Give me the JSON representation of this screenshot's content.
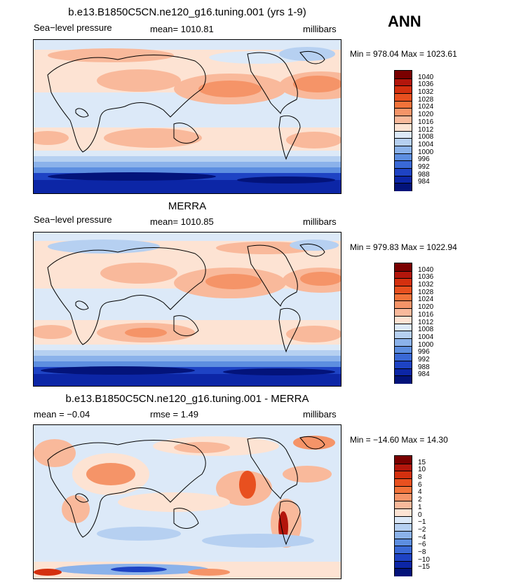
{
  "season": "ANN",
  "panels": [
    {
      "title": "b.e13.B1850C5CN.ne120_g16.tuning.001 (yrs 1-9)",
      "left_label": "Sea−level pressure",
      "mid_label": "mean=  1010.81",
      "right_label": "millibars",
      "minmax": "Min = 978.04  Max = 1023.61",
      "colorbar_labels": [
        "1040",
        "1036",
        "1032",
        "1028",
        "1024",
        "1020",
        "1016",
        "1012",
        "1008",
        "1004",
        "1000",
        "996",
        "992",
        "988",
        "984"
      ]
    },
    {
      "title": "MERRA",
      "left_label": "Sea−level pressure",
      "mid_label": "mean=  1010.85",
      "right_label": "millibars",
      "minmax": "Min = 979.83  Max = 1022.94",
      "colorbar_labels": [
        "1040",
        "1036",
        "1032",
        "1028",
        "1024",
        "1020",
        "1016",
        "1012",
        "1008",
        "1004",
        "1000",
        "996",
        "992",
        "988",
        "984"
      ]
    },
    {
      "title": "b.e13.B1850C5CN.ne120_g16.tuning.001 - MERRA",
      "left_label": "mean =   −0.04",
      "mid_label": "rmse =    1.49",
      "right_label": "millibars",
      "minmax": "Min = −14.60  Max =   14.30",
      "colorbar_labels": [
        "15",
        "10",
        "8",
        "6",
        "4",
        "2",
        "1",
        "0",
        "−1",
        "−2",
        "−4",
        "−6",
        "−8",
        "−10",
        "−15"
      ]
    }
  ],
  "colors": {
    "abs_scale": [
      "#7a0000",
      "#b3160c",
      "#d4300f",
      "#e8501f",
      "#f2733a",
      "#f59468",
      "#f9b99b",
      "#fde3d3",
      "#dce9f8",
      "#b6d0f1",
      "#8bb2ea",
      "#5d8ee0",
      "#3a69d6",
      "#1e43c4",
      "#0c26a6",
      "#03137a"
    ],
    "diff_scale": [
      "#7a0000",
      "#b3160c",
      "#d4300f",
      "#e8501f",
      "#f2733a",
      "#f59468",
      "#f9b99b",
      "#fde3d3",
      "#dce9f8",
      "#b6d0f1",
      "#8bb2ea",
      "#5d8ee0",
      "#3a69d6",
      "#1e43c4",
      "#0c26a6",
      "#03137a"
    ]
  },
  "chart_data": [
    {
      "type": "heatmap",
      "title": "b.e13.B1850C5CN.ne120_g16.tuning.001 (yrs 1-9)",
      "variable": "Sea−level pressure",
      "units": "millibars",
      "mean": 1010.81,
      "min": 978.04,
      "max": 1023.61,
      "contour_levels": [
        984,
        988,
        992,
        996,
        1000,
        1004,
        1008,
        1012,
        1016,
        1020,
        1024,
        1028,
        1032,
        1036,
        1040
      ]
    },
    {
      "type": "heatmap",
      "title": "MERRA",
      "variable": "Sea−level pressure",
      "units": "millibars",
      "mean": 1010.85,
      "min": 979.83,
      "max": 1022.94,
      "contour_levels": [
        984,
        988,
        992,
        996,
        1000,
        1004,
        1008,
        1012,
        1016,
        1020,
        1024,
        1028,
        1032,
        1036,
        1040
      ]
    },
    {
      "type": "heatmap",
      "title": "b.e13.B1850C5CN.ne120_g16.tuning.001 - MERRA",
      "units": "millibars",
      "mean": -0.04,
      "rmse": 1.49,
      "min": -14.6,
      "max": 14.3,
      "contour_levels": [
        -15,
        -10,
        -8,
        -6,
        -4,
        -2,
        -1,
        0,
        1,
        2,
        4,
        6,
        8,
        10,
        15
      ]
    }
  ]
}
